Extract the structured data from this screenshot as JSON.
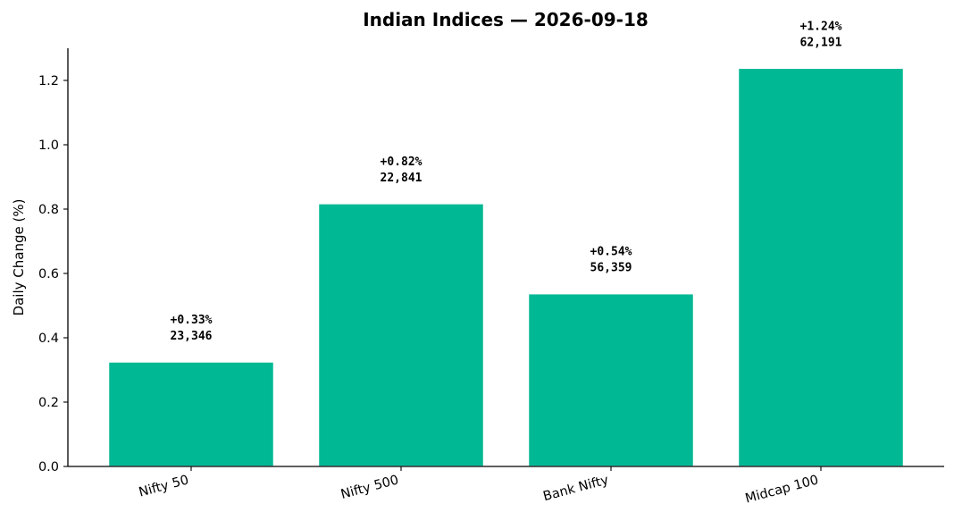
{
  "chart_data": {
    "type": "bar",
    "title": "Indian Indices — 2026-09-18",
    "xlabel": "",
    "ylabel": "Daily Change (%)",
    "categories": [
      "Nifty 50",
      "Nifty 500",
      "Bank Nifty",
      "Midcap 100"
    ],
    "values": [
      0.325,
      0.817,
      0.537,
      1.238
    ],
    "data_labels": [
      {
        "change": "+0.33%",
        "level": "23,346"
      },
      {
        "change": "+0.82%",
        "level": "22,841"
      },
      {
        "change": "+0.54%",
        "level": "56,359"
      },
      {
        "change": "+1.24%",
        "level": "62,191"
      }
    ],
    "ylim": [
      0,
      1.3
    ],
    "yticks": [
      "0.0",
      "0.2",
      "0.4",
      "0.6",
      "0.8",
      "1.0",
      "1.2"
    ],
    "ytick_values": [
      0,
      0.2,
      0.4,
      0.6,
      0.8,
      1.0,
      1.2
    ],
    "bar_color": "#00b894",
    "axis_color": "#000000",
    "grid": false,
    "legend": "none"
  }
}
